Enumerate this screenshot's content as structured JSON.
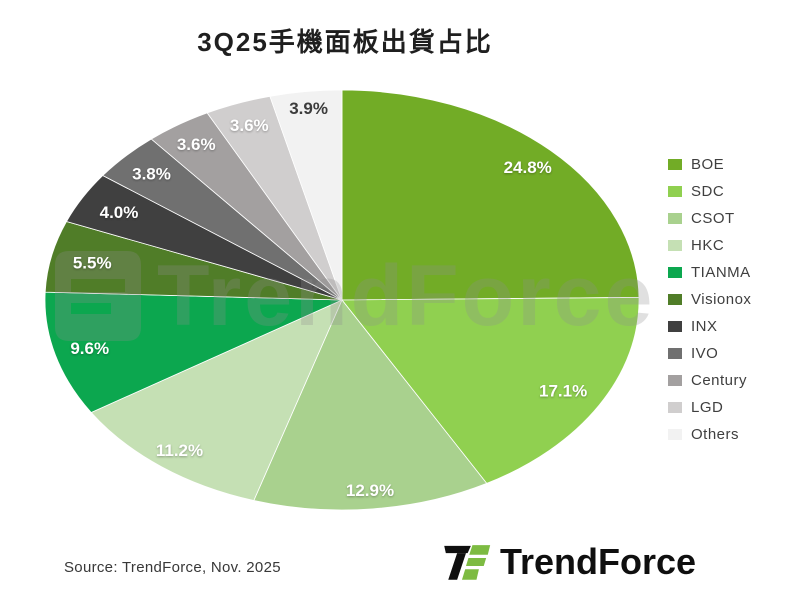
{
  "title": "3Q25手機面板出貨占比",
  "watermark": {
    "text": "TrendForce"
  },
  "chart_data": {
    "type": "pie",
    "title": "3Q25手機面板出貨占比",
    "shape": "ellipse",
    "start_angle_deg": 0,
    "direction": "clockwise",
    "legend_position": "right",
    "slices": [
      {
        "label": "BOE",
        "value": 24.8,
        "display": "24.8%",
        "color": "#72AC26",
        "label_color": "#FFFFFF",
        "label_r": 0.89
      },
      {
        "label": "SDC",
        "value": 17.1,
        "display": "17.1%",
        "color": "#90D050",
        "label_color": "#FFFFFF",
        "label_r": 0.86
      },
      {
        "label": "CSOT",
        "value": 12.9,
        "display": "12.9%",
        "color": "#A9D18E",
        "label_color": "#FFFFFF",
        "label_r": 0.91
      },
      {
        "label": "HKC",
        "value": 11.2,
        "display": "11.2%",
        "color": "#C5E0B4",
        "label_color": "#FFFFFF",
        "label_r": 0.9
      },
      {
        "label": "TIANMA",
        "value": 9.6,
        "display": "9.6%",
        "color": "#0CA74F",
        "label_color": "#FFFFFF",
        "label_r": 0.88
      },
      {
        "label": "Visionox",
        "value": 5.5,
        "display": "5.5%",
        "color": "#507D28",
        "label_color": "#FFFFFF",
        "label_r": 0.86
      },
      {
        "label": "INX",
        "value": 4.0,
        "display": "4.0%",
        "color": "#404040",
        "label_color": "#FFFFFF",
        "label_r": 0.86
      },
      {
        "label": "IVO",
        "value": 3.8,
        "display": "3.8%",
        "color": "#707070",
        "label_color": "#FFFFFF",
        "label_r": 0.88
      },
      {
        "label": "Century",
        "value": 3.6,
        "display": "3.6%",
        "color": "#A3A0A0",
        "label_color": "#FFFFFF",
        "label_r": 0.89
      },
      {
        "label": "LGD",
        "value": 3.6,
        "display": "3.6%",
        "color": "#D0CECE",
        "label_color": "#FFFFFF",
        "label_r": 0.89
      },
      {
        "label": "Others",
        "value": 3.9,
        "display": "3.9%",
        "color": "#F2F2F2",
        "label_color": "#3C3C3C",
        "label_r": 0.92
      }
    ]
  },
  "footer": {
    "source": "Source: TrendForce, Nov. 2025",
    "brand": "TrendForce"
  },
  "colors": {
    "title_text": "#1F1F1F",
    "legend_text": "#3F3F3F",
    "logo_black": "#0F0F0F",
    "logo_green": "#7DBB42",
    "watermark_gray": "#8F8F8F"
  }
}
